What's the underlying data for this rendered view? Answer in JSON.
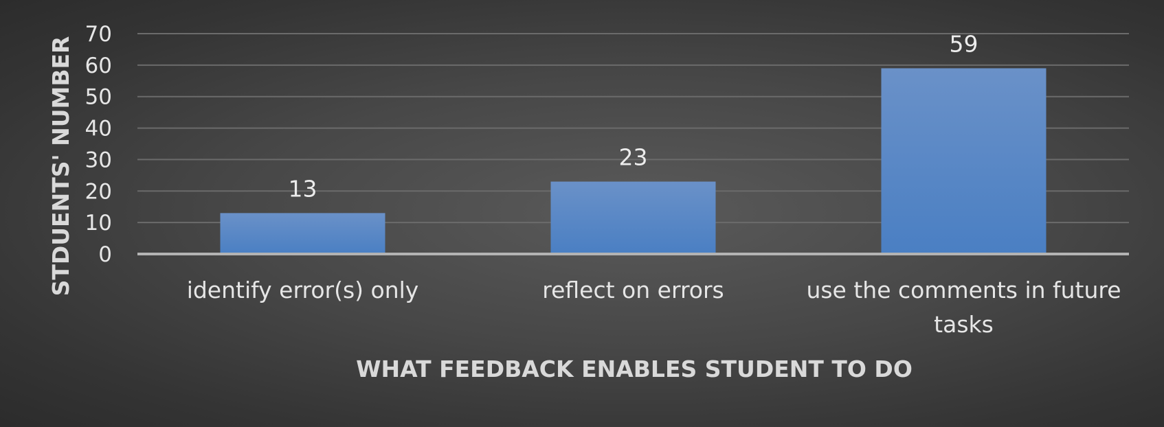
{
  "chart_data": {
    "type": "bar",
    "categories": [
      [
        "identify error(s) only"
      ],
      [
        "reflect on errors"
      ],
      [
        "use the comments in  future",
        "tasks"
      ]
    ],
    "values": [
      13,
      23,
      59
    ],
    "title": "",
    "xlabel": "WHAT FEEDBACK ENABLES STUDENT TO DO",
    "ylabel": "STDUENTS' NUMBER",
    "ylim": [
      0,
      70
    ],
    "yticks": [
      0,
      10,
      20,
      30,
      40,
      50,
      60,
      70
    ],
    "data_labels": true,
    "grid": true,
    "legend": "none",
    "colors": {
      "bar_top": "#6a91c8",
      "bar_bottom": "#4a7fc3",
      "grid": "#6b6b6b",
      "axis": "#b3b3b3"
    }
  }
}
